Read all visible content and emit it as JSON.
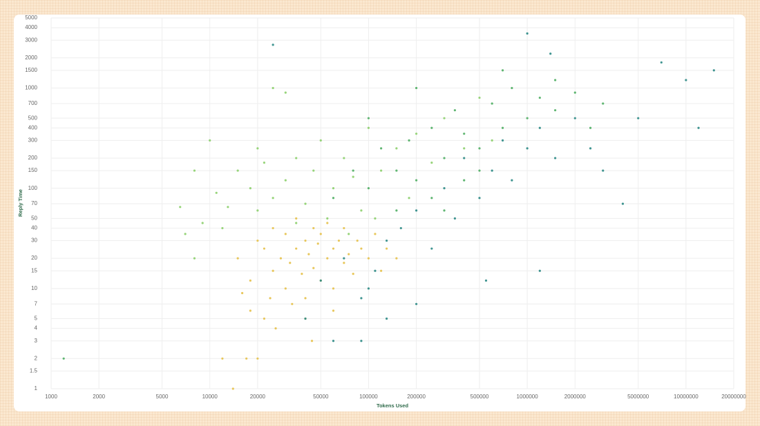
{
  "chart_data": {
    "type": "scatter",
    "x_label": "Tokens Used",
    "y_label": "Reply Time",
    "xscale": "log",
    "yscale": "log",
    "grid": true,
    "xlim": [
      1000,
      20000000
    ],
    "ylim": [
      1,
      5000
    ],
    "xticks": [
      1000,
      2000,
      5000,
      10000,
      20000,
      50000,
      100000,
      200000,
      500000,
      1000000,
      2000000,
      5000000,
      10000000,
      20000000
    ],
    "yticks": [
      1,
      1.5,
      2,
      3,
      4,
      5,
      7,
      10,
      15,
      20,
      30,
      40,
      50,
      70,
      100,
      150,
      200,
      300,
      400,
      500,
      700,
      1000,
      1500,
      2000,
      3000,
      4000,
      5000
    ],
    "series": [
      {
        "color": "#e6c14a",
        "x": [
          15000,
          18000,
          20000,
          22000,
          25000,
          25000,
          28000,
          30000,
          30000,
          32000,
          35000,
          35000,
          38000,
          40000,
          40000,
          42000,
          45000,
          45000,
          48000,
          50000,
          50000,
          55000,
          55000,
          60000,
          60000,
          65000,
          70000,
          70000,
          75000,
          80000,
          85000,
          90000,
          100000,
          110000,
          120000,
          130000,
          150000,
          18000,
          22000,
          26000,
          16000,
          12000,
          17000,
          24000,
          33000,
          40000,
          60000,
          44000,
          20000,
          14000
        ],
        "y": [
          20,
          12,
          30,
          25,
          15,
          40,
          20,
          10,
          35,
          18,
          25,
          50,
          14,
          30,
          8,
          22,
          40,
          16,
          28,
          12,
          35,
          20,
          45,
          25,
          10,
          30,
          18,
          40,
          22,
          14,
          30,
          25,
          20,
          35,
          15,
          25,
          20,
          6,
          5,
          4,
          9,
          2,
          2,
          8,
          7,
          5,
          6,
          3,
          2,
          1
        ]
      },
      {
        "color": "#8ccf6c",
        "x": [
          6500,
          8000,
          9000,
          11000,
          13000,
          15000,
          18000,
          20000,
          22000,
          25000,
          30000,
          35000,
          40000,
          45000,
          50000,
          60000,
          70000,
          80000,
          90000,
          100000,
          120000,
          150000,
          180000,
          200000,
          250000,
          300000,
          400000,
          500000,
          600000,
          25000,
          30000,
          12000,
          10000,
          8000,
          7000,
          20000,
          35000,
          55000,
          75000,
          110000
        ],
        "y": [
          65,
          20,
          45,
          90,
          65,
          150,
          100,
          250,
          180,
          80,
          120,
          200,
          70,
          150,
          300,
          100,
          200,
          130,
          60,
          400,
          150,
          250,
          80,
          350,
          180,
          500,
          250,
          800,
          300,
          1000,
          900,
          40,
          300,
          150,
          35,
          60,
          45,
          50,
          35,
          50
        ]
      },
      {
        "color": "#4fae63",
        "x": [
          60000,
          80000,
          100000,
          120000,
          150000,
          180000,
          200000,
          250000,
          300000,
          350000,
          400000,
          500000,
          600000,
          700000,
          800000,
          1000000,
          1200000,
          1500000,
          2000000,
          250000,
          150000,
          400000,
          700000,
          1500000,
          3000000,
          2500000,
          200000,
          100000,
          300000,
          500000,
          1200
        ],
        "y": [
          80,
          150,
          100,
          250,
          150,
          300,
          120,
          400,
          200,
          600,
          350,
          250,
          700,
          400,
          1000,
          500,
          800,
          600,
          900,
          80,
          60,
          120,
          1500,
          1200,
          700,
          400,
          1000,
          500,
          60,
          150,
          2
        ]
      },
      {
        "color": "#2b8a85",
        "x": [
          50000,
          70000,
          90000,
          110000,
          130000,
          160000,
          200000,
          250000,
          300000,
          350000,
          400000,
          500000,
          600000,
          700000,
          800000,
          1000000,
          1200000,
          1500000,
          2000000,
          2500000,
          3000000,
          4000000,
          5000000,
          7000000,
          10000000,
          12000000,
          15000000,
          1000000,
          1400000,
          1200000,
          40000,
          60000,
          90000,
          130000,
          200000,
          100000,
          25000,
          550000
        ],
        "y": [
          12,
          20,
          8,
          15,
          30,
          40,
          60,
          25,
          100,
          50,
          200,
          80,
          150,
          300,
          120,
          250,
          400,
          200,
          500,
          250,
          150,
          70,
          500,
          1800,
          1200,
          400,
          1500,
          3500,
          2200,
          15,
          5,
          3,
          3,
          5,
          7,
          10,
          2700,
          12
        ]
      }
    ]
  }
}
